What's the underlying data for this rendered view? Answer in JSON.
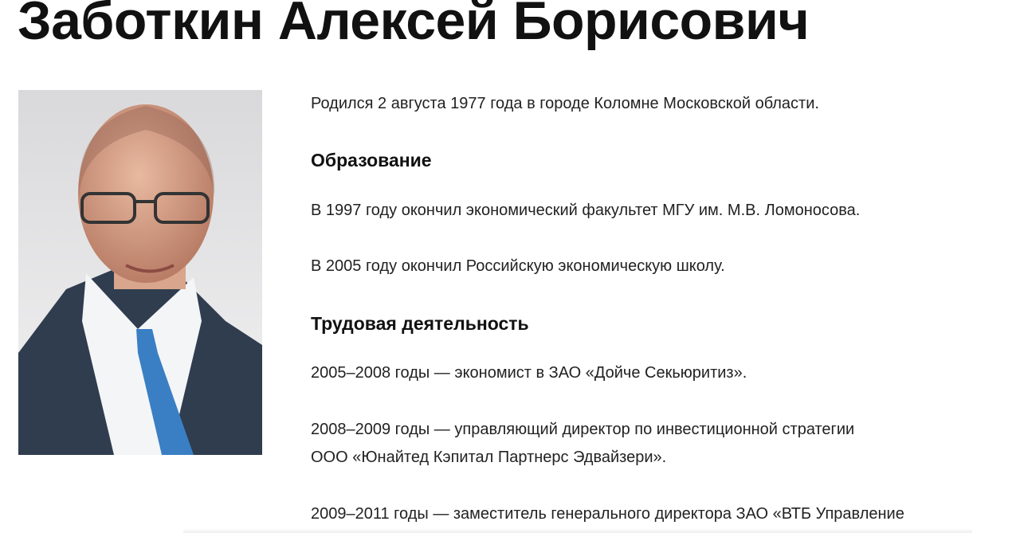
{
  "page_title": "Заботкин Алексей Борисович",
  "photo_alt": "portrait",
  "born": "Родился 2 августа 1977 года в городе Коломне Московской области.",
  "education": {
    "heading": "Образование",
    "items": [
      "В 1997 году окончил экономический факультет МГУ им. М.В. Ломоносова.",
      "В 2005 году окончил Российскую экономическую школу."
    ]
  },
  "career": {
    "heading": "Трудовая деятельность",
    "items": [
      {
        "line1": "2005–2008 годы — экономист в ЗАО «Дойче Секьюритиз».",
        "line2": ""
      },
      {
        "line1": "2008–2009 годы — управляющий директор по инвестиционной стратегии",
        "line2": "ООО «Юнайтед Кэпитал Партнерс Эдвайзери»."
      },
      {
        "line1": "2009–2011 годы — заместитель генерального директора ЗАО «ВТБ Управление",
        "line2": ""
      }
    ]
  }
}
